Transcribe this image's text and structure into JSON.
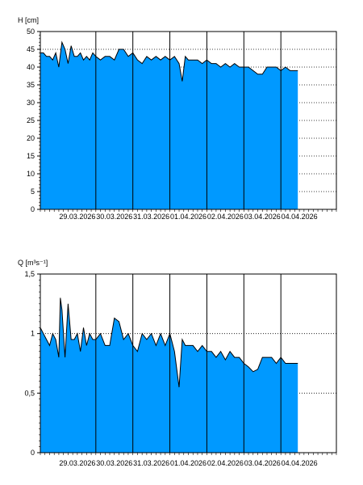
{
  "chart_data": [
    {
      "type": "area",
      "ylabel": "H [cm]",
      "ylim": [
        0,
        50
      ],
      "y_ticks": [
        "0",
        "5",
        "10",
        "15",
        "20",
        "25",
        "30",
        "35",
        "40",
        "45",
        "50"
      ],
      "x_ticks": [
        "29.03.2026",
        "30.03.2026",
        "31.03.2026",
        "01.04.2026",
        "02.04.2026",
        "03.04.2026",
        "04.04.2026"
      ],
      "fill_color": "#0099ff",
      "grid": "horizontal dotted, vertical solid at day boundaries",
      "series": [
        {
          "x": [
            "2026-03-28T12:00",
            "2026-03-28T14:00",
            "2026-03-28T16:00",
            "2026-03-28T18:00",
            "2026-03-28T20:00",
            "2026-03-28T22:00",
            "2026-03-29T00:00",
            "2026-03-29T02:00",
            "2026-03-29T04:00",
            "2026-03-29T06:00",
            "2026-03-29T08:00",
            "2026-03-29T10:00",
            "2026-03-29T12:00",
            "2026-03-29T14:00",
            "2026-03-29T16:00",
            "2026-03-29T18:00",
            "2026-03-29T20:00",
            "2026-03-29T22:00",
            "2026-03-30T00:00",
            "2026-03-30T03:00",
            "2026-03-30T06:00",
            "2026-03-30T09:00",
            "2026-03-30T12:00",
            "2026-03-30T15:00",
            "2026-03-30T18:00",
            "2026-03-30T21:00",
            "2026-03-31T00:00",
            "2026-03-31T03:00",
            "2026-03-31T06:00",
            "2026-03-31T09:00",
            "2026-03-31T12:00",
            "2026-03-31T15:00",
            "2026-03-31T18:00",
            "2026-03-31T21:00",
            "2026-04-01T00:00",
            "2026-04-01T03:00",
            "2026-04-01T06:00",
            "2026-04-01T08:00",
            "2026-04-01T10:00",
            "2026-04-01T12:00",
            "2026-04-01T15:00",
            "2026-04-01T18:00",
            "2026-04-01T21:00",
            "2026-04-02T00:00",
            "2026-04-02T03:00",
            "2026-04-02T06:00",
            "2026-04-02T09:00",
            "2026-04-02T12:00",
            "2026-04-02T15:00",
            "2026-04-02T18:00",
            "2026-04-02T21:00",
            "2026-04-03T00:00",
            "2026-04-03T03:00",
            "2026-04-03T06:00",
            "2026-04-03T09:00",
            "2026-04-03T12:00",
            "2026-04-03T15:00",
            "2026-04-03T18:00",
            "2026-04-03T21:00",
            "2026-04-04T00:00",
            "2026-04-04T03:00",
            "2026-04-04T06:00",
            "2026-04-04T09:00",
            "2026-04-04T11:00"
          ],
          "values": [
            44,
            44,
            43,
            43,
            42,
            44,
            40,
            47,
            45,
            41,
            46,
            43,
            43,
            44,
            42,
            43,
            42,
            44,
            43,
            42,
            43,
            43,
            42,
            45,
            45,
            43,
            44,
            42,
            41,
            43,
            42,
            43,
            42,
            43,
            42,
            43,
            41,
            36,
            43,
            42,
            42,
            42,
            41,
            42,
            41,
            41,
            40,
            41,
            40,
            41,
            40,
            40,
            40,
            39,
            38,
            38,
            40,
            40,
            40,
            39,
            40,
            39,
            39,
            39
          ]
        }
      ]
    },
    {
      "type": "area",
      "ylabel": "Q [m³s⁻¹]",
      "ylim": [
        0,
        1.5
      ],
      "y_ticks": [
        "0",
        "0,5",
        "1",
        "1,5"
      ],
      "x_ticks": [
        "29.03.2026",
        "30.03.2026",
        "31.03.2026",
        "01.04.2026",
        "02.04.2026",
        "03.04.2026",
        "04.04.2026"
      ],
      "fill_color": "#0099ff",
      "grid": "horizontal dotted, vertical solid at day boundaries",
      "series": [
        {
          "x": [
            "2026-03-28T12:00",
            "2026-03-28T14:00",
            "2026-03-28T16:00",
            "2026-03-28T18:00",
            "2026-03-28T20:00",
            "2026-03-28T22:00",
            "2026-03-29T00:00",
            "2026-03-29T01:00",
            "2026-03-29T02:00",
            "2026-03-29T04:00",
            "2026-03-29T06:00",
            "2026-03-29T08:00",
            "2026-03-29T10:00",
            "2026-03-29T12:00",
            "2026-03-29T14:00",
            "2026-03-29T16:00",
            "2026-03-29T18:00",
            "2026-03-29T20:00",
            "2026-03-29T22:00",
            "2026-03-30T00:00",
            "2026-03-30T03:00",
            "2026-03-30T06:00",
            "2026-03-30T09:00",
            "2026-03-30T12:00",
            "2026-03-30T15:00",
            "2026-03-30T18:00",
            "2026-03-30T21:00",
            "2026-03-31T00:00",
            "2026-03-31T03:00",
            "2026-03-31T06:00",
            "2026-03-31T09:00",
            "2026-03-31T12:00",
            "2026-03-31T15:00",
            "2026-03-31T18:00",
            "2026-03-31T21:00",
            "2026-04-01T00:00",
            "2026-04-01T03:00",
            "2026-04-01T06:00",
            "2026-04-01T08:00",
            "2026-04-01T10:00",
            "2026-04-01T12:00",
            "2026-04-01T15:00",
            "2026-04-01T18:00",
            "2026-04-01T21:00",
            "2026-04-02T00:00",
            "2026-04-02T03:00",
            "2026-04-02T06:00",
            "2026-04-02T09:00",
            "2026-04-02T12:00",
            "2026-04-02T15:00",
            "2026-04-02T18:00",
            "2026-04-02T21:00",
            "2026-04-03T00:00",
            "2026-04-03T03:00",
            "2026-04-03T06:00",
            "2026-04-03T09:00",
            "2026-04-03T12:00",
            "2026-04-03T15:00",
            "2026-04-03T18:00",
            "2026-04-03T21:00",
            "2026-04-04T00:00",
            "2026-04-04T03:00",
            "2026-04-04T06:00",
            "2026-04-04T09:00",
            "2026-04-04T11:00"
          ],
          "values": [
            1.05,
            1.0,
            0.95,
            0.9,
            1.0,
            0.95,
            0.8,
            1.3,
            1.2,
            0.8,
            1.25,
            0.95,
            0.95,
            1.0,
            0.85,
            1.05,
            0.9,
            1.0,
            0.95,
            0.95,
            1.0,
            0.9,
            0.9,
            1.13,
            1.1,
            0.95,
            1.0,
            0.9,
            0.85,
            1.0,
            0.95,
            1.0,
            0.9,
            1.0,
            0.9,
            1.0,
            0.85,
            0.55,
            0.95,
            0.9,
            0.9,
            0.9,
            0.85,
            0.9,
            0.85,
            0.85,
            0.8,
            0.85,
            0.78,
            0.85,
            0.8,
            0.8,
            0.75,
            0.72,
            0.68,
            0.7,
            0.8,
            0.8,
            0.8,
            0.75,
            0.8,
            0.75,
            0.75,
            0.75,
            0.75
          ]
        }
      ]
    }
  ]
}
